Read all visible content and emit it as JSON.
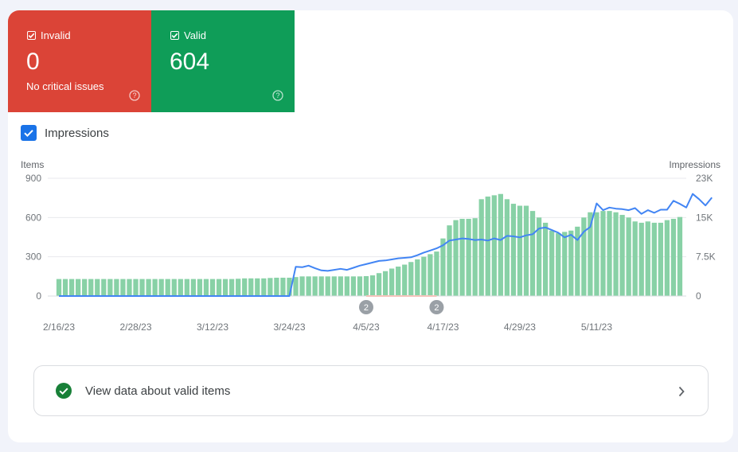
{
  "tiles": {
    "invalid": {
      "label": "Invalid",
      "count": "0",
      "sub": "No critical issues",
      "color": "#db4437"
    },
    "valid": {
      "label": "Valid",
      "count": "604",
      "color": "#0f9d58"
    }
  },
  "impressions_toggle": {
    "label": "Impressions",
    "checked": true
  },
  "valid_link": {
    "label": "View data about valid items"
  },
  "icons": [
    "checkbox-icon",
    "help-icon",
    "check-circle-icon",
    "chevron-right-icon"
  ],
  "chart_data": {
    "type": "bar",
    "left_axis": {
      "title": "Items",
      "ticks": [
        "900",
        "600",
        "300",
        "0"
      ],
      "max": 900
    },
    "right_axis": {
      "title": "Impressions",
      "ticks": [
        "23K",
        "15K",
        "7.5K",
        "0"
      ],
      "max": 22500
    },
    "x_labels": [
      "2/16/23",
      "2/28/23",
      "3/12/23",
      "3/24/23",
      "4/5/23",
      "4/17/23",
      "4/29/23",
      "5/11/23"
    ],
    "annotations": [
      "2",
      "2"
    ],
    "bar_color": "#88d1a6",
    "line_color": "#4285f4",
    "series": [
      {
        "name": "Items",
        "type": "bar",
        "values": [
          130,
          130,
          130,
          130,
          130,
          130,
          130,
          130,
          130,
          130,
          130,
          130,
          130,
          130,
          130,
          130,
          130,
          130,
          130,
          130,
          130,
          130,
          130,
          130,
          130,
          130,
          130,
          130,
          132,
          135,
          135,
          135,
          135,
          138,
          140,
          140,
          140,
          145,
          150,
          150,
          150,
          150,
          150,
          150,
          150,
          150,
          150,
          150,
          152,
          158,
          175,
          190,
          210,
          225,
          240,
          260,
          280,
          300,
          320,
          340,
          440,
          540,
          580,
          590,
          590,
          595,
          740,
          760,
          770,
          780,
          740,
          705,
          690,
          690,
          650,
          600,
          560,
          500,
          480,
          490,
          500,
          530,
          600,
          640,
          640,
          650,
          650,
          640,
          620,
          600,
          570,
          560,
          570,
          560,
          560,
          580,
          590,
          604
        ]
      },
      {
        "name": "Impressions",
        "type": "line",
        "values": [
          0,
          0,
          0,
          0,
          0,
          0,
          0,
          0,
          0,
          0,
          0,
          0,
          0,
          0,
          0,
          0,
          0,
          0,
          0,
          0,
          0,
          0,
          0,
          0,
          0,
          0,
          0,
          0,
          0,
          0,
          0,
          0,
          0,
          0,
          0,
          0,
          0,
          5600,
          5500,
          5800,
          5300,
          4900,
          4800,
          5000,
          5200,
          5000,
          5400,
          5800,
          6100,
          6400,
          6700,
          6800,
          7000,
          7200,
          7300,
          7400,
          7800,
          8300,
          8700,
          9100,
          9700,
          10600,
          10800,
          11000,
          10900,
          10700,
          10800,
          10600,
          11000,
          10700,
          11500,
          11400,
          11200,
          11600,
          11800,
          12900,
          13100,
          12600,
          12100,
          11200,
          11700,
          10700,
          12300,
          13200,
          17700,
          16400,
          16900,
          16700,
          16600,
          16400,
          16800,
          15700,
          16400,
          15900,
          16500,
          16500,
          18200,
          17600,
          16900,
          19500,
          18500,
          17300,
          18800
        ]
      }
    ]
  }
}
